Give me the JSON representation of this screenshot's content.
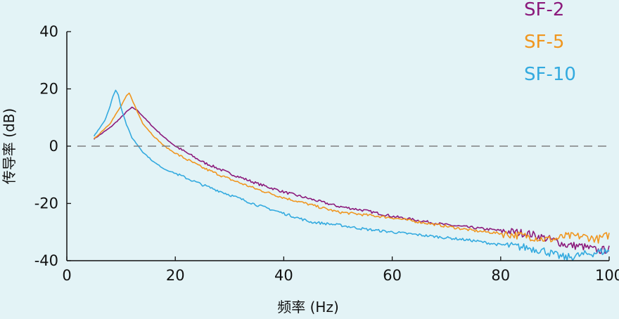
{
  "chart_data": {
    "type": "line",
    "xlabel": "频率 (Hz)",
    "ylabel": "传导率 (dB)",
    "xlim": [
      0,
      100
    ],
    "ylim": [
      -40,
      40
    ],
    "xticks": [
      0,
      20,
      40,
      60,
      80,
      100
    ],
    "yticks": [
      -40,
      -20,
      0,
      20,
      40
    ],
    "xtick_labels": [
      "0",
      "20",
      "40",
      "60",
      "80",
      "100"
    ],
    "ytick_labels": [
      "-40",
      "-20",
      "0",
      "20",
      "40"
    ],
    "reference_line": {
      "y": 0,
      "style": "dashed",
      "color": "#808080"
    },
    "legend_position": "top-right",
    "grid": false,
    "series": [
      {
        "name": "SF-2",
        "color": "#8b1a7c",
        "x": [
          5,
          8,
          10,
          11,
          12,
          13,
          14,
          16,
          18,
          20,
          25,
          30,
          35,
          40,
          45,
          50,
          55,
          60,
          65,
          70,
          75,
          80,
          85,
          88,
          90,
          92,
          95,
          98,
          100
        ],
        "y": [
          2.5,
          6.5,
          10,
          12,
          13.5,
          12.5,
          10.5,
          6.5,
          3,
          0,
          -5.5,
          -9.5,
          -13,
          -16,
          -18.5,
          -21,
          -22.5,
          -24.5,
          -26,
          -27.5,
          -28.5,
          -29.5,
          -30.5,
          -32,
          -33,
          -34.5,
          -35,
          -36.5,
          -36
        ]
      },
      {
        "name": "SF-5",
        "color": "#f0961f",
        "x": [
          5,
          8,
          10,
          11,
          11.5,
          12,
          13,
          14,
          16,
          18,
          20,
          25,
          30,
          35,
          40,
          45,
          50,
          55,
          60,
          65,
          70,
          75,
          80,
          85,
          88,
          90,
          92,
          95,
          98,
          100
        ],
        "y": [
          2.5,
          8,
          14,
          17.5,
          18.5,
          16.5,
          12,
          8,
          3.5,
          0,
          -2.5,
          -7.5,
          -11.5,
          -15,
          -18,
          -20.5,
          -23,
          -24,
          -25,
          -26.5,
          -28,
          -29.5,
          -30.5,
          -31.5,
          -32.5,
          -32.5,
          -31.5,
          -31.5,
          -32.5,
          -31
        ]
      },
      {
        "name": "SF-10",
        "color": "#33aadf",
        "x": [
          5,
          7,
          8,
          8.5,
          9,
          9.5,
          10,
          11,
          12,
          14,
          16,
          18,
          20,
          25,
          30,
          35,
          40,
          45,
          50,
          55,
          60,
          65,
          70,
          75,
          80,
          85,
          88,
          90,
          92,
          95,
          98,
          100
        ],
        "y": [
          3.5,
          9,
          14,
          17.5,
          19.5,
          18,
          13.5,
          7.5,
          3,
          -2,
          -5.5,
          -8,
          -9.5,
          -13.5,
          -17,
          -20.5,
          -23.5,
          -26.5,
          -27.5,
          -29,
          -30,
          -31,
          -32,
          -33,
          -34.5,
          -35.5,
          -36.5,
          -38,
          -39,
          -38,
          -37,
          -36.5
        ]
      }
    ]
  }
}
